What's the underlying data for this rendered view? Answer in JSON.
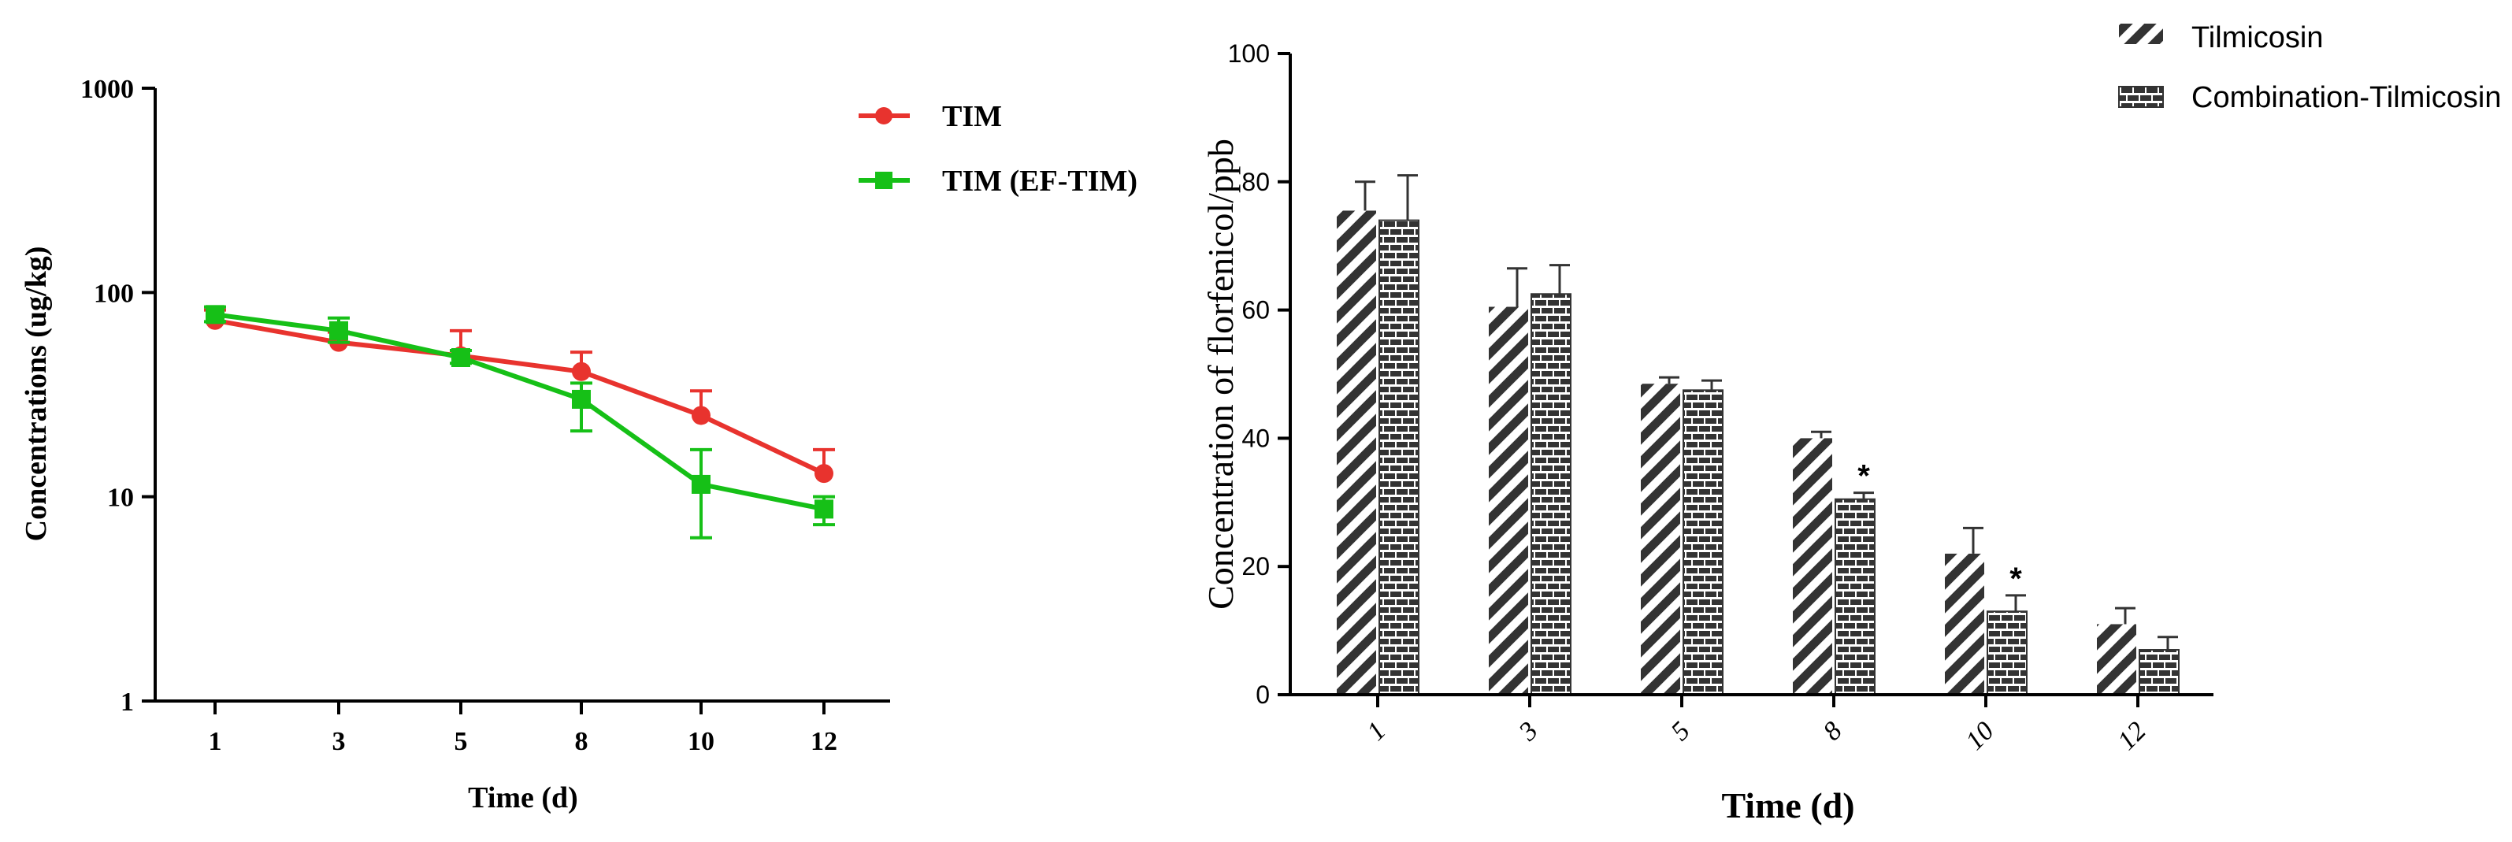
{
  "chart_data": [
    {
      "type": "line",
      "title": "",
      "xlabel": "Time (d)",
      "ylabel": "Concentrations (ug/kg)",
      "yscale": "log",
      "ylim": [
        1,
        1000
      ],
      "yticks": [
        "1",
        "10",
        "100",
        "1000"
      ],
      "categories": [
        "1",
        "3",
        "5",
        "8",
        "10",
        "12"
      ],
      "legend_position": "top-right",
      "series": [
        {
          "name": "TIM",
          "color": "#e8332e",
          "marker": "circle",
          "values": [
            73,
            57,
            49,
            41,
            25,
            13
          ],
          "err_up": [
            82,
            64,
            65,
            51,
            33,
            17
          ],
          "err_low": [
            73,
            57,
            49,
            41,
            25,
            13
          ]
        },
        {
          "name": "TIM (EF-TIM)",
          "color": "#16c017",
          "marker": "square",
          "values": [
            78,
            65,
            48,
            30,
            11.5,
            8.7
          ],
          "err_up": [
            85,
            75,
            52,
            36,
            17,
            10
          ],
          "err_low": [
            72,
            57,
            45,
            21,
            6.3,
            7.3
          ]
        }
      ]
    },
    {
      "type": "bar",
      "title": "",
      "xlabel": "Time (d)",
      "ylabel": "Concentration of florfenicol/ppb",
      "ylim": [
        0,
        100
      ],
      "yticks": [
        "0",
        "20",
        "40",
        "60",
        "80",
        "100"
      ],
      "categories": [
        "1",
        "3",
        "5",
        "8",
        "10",
        "12"
      ],
      "legend_position": "top-right",
      "series": [
        {
          "name": "Tilmicosin",
          "pattern": "diagonal-hatch",
          "values": [
            75.5,
            60.5,
            48.5,
            40,
            22,
            11
          ],
          "err_up": [
            80,
            66.5,
            49.5,
            41,
            26,
            13.5
          ]
        },
        {
          "name": "Combination-Tilmicosin",
          "pattern": "brick",
          "values": [
            74,
            62.5,
            47.5,
            30.5,
            13,
            7
          ],
          "err_up": [
            81,
            67,
            49,
            31.5,
            15.5,
            9
          ]
        }
      ],
      "annotations": [
        {
          "category": "8",
          "series": "Combination-Tilmicosin",
          "text": "*"
        },
        {
          "category": "10",
          "series": "Combination-Tilmicosin",
          "text": "*"
        }
      ]
    }
  ]
}
